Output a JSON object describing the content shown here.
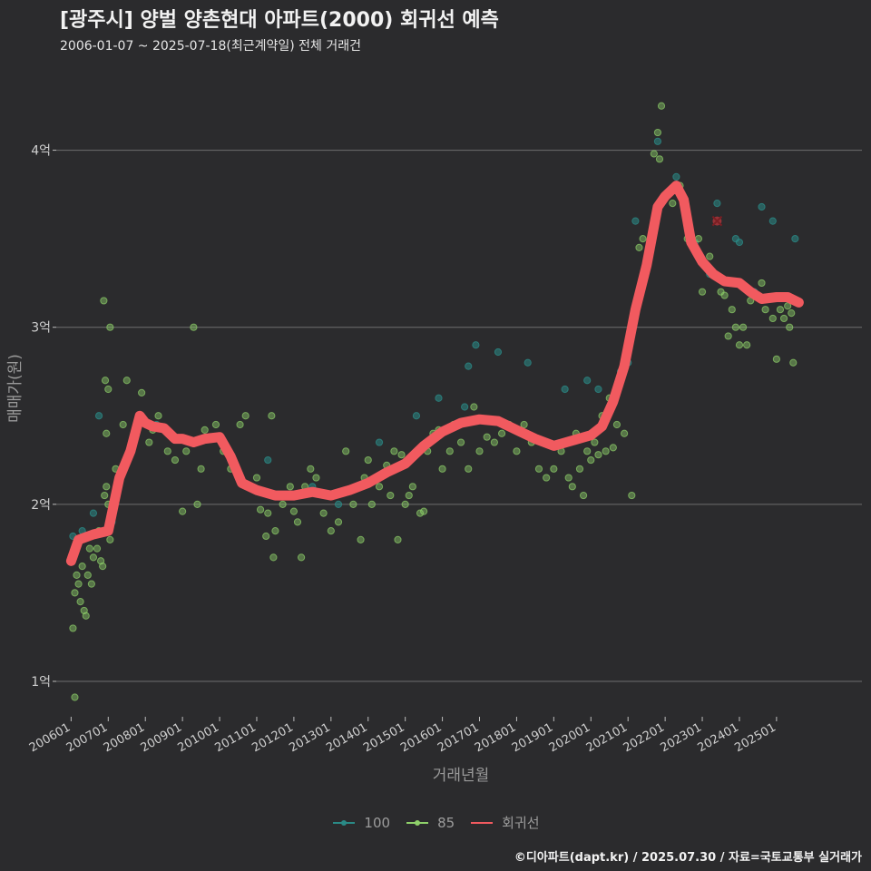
{
  "header": {
    "title": "[광주시] 양벌 양촌현대 아파트(2000) 회귀선 예측",
    "subtitle": "2006-01-07 ~ 2025-07-18(최근계약일) 전체 거래건"
  },
  "caption": "©디아파트(dapt.kr) / 2025.07.30 / 자료=국토교통부 실거래가",
  "colors": {
    "background": "#2b2b2d",
    "grid": "#6e6e6e",
    "series_100": "#2a8a86",
    "series_85": "#8fd16a",
    "regression": "#f15a5f"
  },
  "chart_data": {
    "type": "scatter",
    "xlabel": "거래년월",
    "ylabel": "매매가(원)",
    "x_range": [
      2005.6,
      2027.3
    ],
    "ylim": [
      0.8,
      4.5
    ],
    "y_ticks": [
      {
        "value": 1,
        "label": "1억"
      },
      {
        "value": 2,
        "label": "2억"
      },
      {
        "value": 3,
        "label": "3억"
      },
      {
        "value": 4,
        "label": "4억"
      }
    ],
    "x_ticks": [
      {
        "value": 2006,
        "label": "200601"
      },
      {
        "value": 2007,
        "label": "200701"
      },
      {
        "value": 2008,
        "label": "200801"
      },
      {
        "value": 2009,
        "label": "200901"
      },
      {
        "value": 2010,
        "label": "201001"
      },
      {
        "value": 2011,
        "label": "201101"
      },
      {
        "value": 2012,
        "label": "201201"
      },
      {
        "value": 2013,
        "label": "201301"
      },
      {
        "value": 2014,
        "label": "201401"
      },
      {
        "value": 2015,
        "label": "201501"
      },
      {
        "value": 2016,
        "label": "201601"
      },
      {
        "value": 2017,
        "label": "201701"
      },
      {
        "value": 2018,
        "label": "201801"
      },
      {
        "value": 2019,
        "label": "201901"
      },
      {
        "value": 2020,
        "label": "202001"
      },
      {
        "value": 2021,
        "label": "202101"
      },
      {
        "value": 2022,
        "label": "202201"
      },
      {
        "value": 2023,
        "label": "202301"
      },
      {
        "value": 2024,
        "label": "202401"
      },
      {
        "value": 2025,
        "label": "202501"
      }
    ],
    "grid": "horizontal",
    "legend_position": "bottom",
    "series": [
      {
        "name": "100",
        "points": [
          [
            2006.05,
            1.82
          ],
          [
            2006.3,
            1.85
          ],
          [
            2006.6,
            1.95
          ],
          [
            2006.75,
            2.5
          ],
          [
            2007.1,
            1.9
          ],
          [
            2008.3,
            2.45
          ],
          [
            2010.3,
            2.25
          ],
          [
            2011.3,
            2.25
          ],
          [
            2012.5,
            2.1
          ],
          [
            2013.2,
            2.0
          ],
          [
            2014.3,
            2.35
          ],
          [
            2015.3,
            2.5
          ],
          [
            2015.9,
            2.6
          ],
          [
            2016.6,
            2.55
          ],
          [
            2016.7,
            2.78
          ],
          [
            2016.9,
            2.9
          ],
          [
            2017.5,
            2.86
          ],
          [
            2018.3,
            2.8
          ],
          [
            2019.3,
            2.65
          ],
          [
            2019.9,
            2.7
          ],
          [
            2020.2,
            2.65
          ],
          [
            2020.5,
            2.55
          ],
          [
            2020.8,
            2.75
          ],
          [
            2021.0,
            2.8
          ],
          [
            2021.2,
            3.6
          ],
          [
            2021.8,
            4.05
          ],
          [
            2022.3,
            3.85
          ],
          [
            2022.8,
            3.48
          ],
          [
            2023.2,
            3.3
          ],
          [
            2023.4,
            3.7
          ],
          [
            2023.9,
            3.5
          ],
          [
            2024.0,
            3.48
          ],
          [
            2024.4,
            3.2
          ],
          [
            2024.6,
            3.68
          ],
          [
            2024.9,
            3.6
          ],
          [
            2025.5,
            3.5
          ]
        ]
      },
      {
        "name": "85",
        "points": [
          [
            2006.05,
            1.3
          ],
          [
            2006.1,
            1.5
          ],
          [
            2006.15,
            1.6
          ],
          [
            2006.2,
            1.55
          ],
          [
            2006.25,
            1.45
          ],
          [
            2006.3,
            1.65
          ],
          [
            2006.35,
            1.4
          ],
          [
            2006.4,
            1.37
          ],
          [
            2006.45,
            1.6
          ],
          [
            2006.5,
            1.75
          ],
          [
            2006.55,
            1.55
          ],
          [
            2006.6,
            1.7
          ],
          [
            2006.7,
            1.75
          ],
          [
            2006.75,
            1.85
          ],
          [
            2006.8,
            1.68
          ],
          [
            2006.85,
            1.65
          ],
          [
            2006.9,
            2.05
          ],
          [
            2006.95,
            2.1
          ],
          [
            2007.0,
            2.0
          ],
          [
            2007.05,
            1.8
          ],
          [
            2006.1,
            0.91
          ],
          [
            2006.88,
            3.15
          ],
          [
            2007.05,
            3.0
          ],
          [
            2006.92,
            2.7
          ],
          [
            2007.0,
            2.65
          ],
          [
            2006.95,
            2.4
          ],
          [
            2007.2,
            2.2
          ],
          [
            2007.4,
            2.45
          ],
          [
            2007.5,
            2.7
          ],
          [
            2007.9,
            2.63
          ],
          [
            2008.1,
            2.35
          ],
          [
            2008.2,
            2.42
          ],
          [
            2008.35,
            2.5
          ],
          [
            2008.6,
            2.3
          ],
          [
            2008.8,
            2.25
          ],
          [
            2009.0,
            1.96
          ],
          [
            2009.1,
            2.3
          ],
          [
            2009.3,
            3.0
          ],
          [
            2009.4,
            2.0
          ],
          [
            2009.5,
            2.2
          ],
          [
            2009.6,
            2.42
          ],
          [
            2009.9,
            2.45
          ],
          [
            2010.1,
            2.3
          ],
          [
            2010.3,
            2.2
          ],
          [
            2010.55,
            2.45
          ],
          [
            2010.7,
            2.5
          ],
          [
            2011.0,
            2.15
          ],
          [
            2011.1,
            1.97
          ],
          [
            2011.25,
            1.82
          ],
          [
            2011.3,
            1.95
          ],
          [
            2011.4,
            2.5
          ],
          [
            2011.45,
            1.7
          ],
          [
            2011.5,
            1.85
          ],
          [
            2011.7,
            2.0
          ],
          [
            2011.9,
            2.1
          ],
          [
            2012.0,
            1.96
          ],
          [
            2012.1,
            1.9
          ],
          [
            2012.2,
            1.7
          ],
          [
            2012.3,
            2.1
          ],
          [
            2012.45,
            2.2
          ],
          [
            2012.6,
            2.15
          ],
          [
            2012.8,
            1.95
          ],
          [
            2013.0,
            1.85
          ],
          [
            2013.2,
            1.9
          ],
          [
            2013.4,
            2.3
          ],
          [
            2013.6,
            2.0
          ],
          [
            2013.8,
            1.8
          ],
          [
            2013.9,
            2.15
          ],
          [
            2014.0,
            2.25
          ],
          [
            2014.1,
            2.0
          ],
          [
            2014.3,
            2.1
          ],
          [
            2014.5,
            2.22
          ],
          [
            2014.6,
            2.05
          ],
          [
            2014.7,
            2.3
          ],
          [
            2014.8,
            1.8
          ],
          [
            2014.9,
            2.28
          ],
          [
            2015.0,
            2.0
          ],
          [
            2015.1,
            2.05
          ],
          [
            2015.2,
            2.1
          ],
          [
            2015.4,
            1.95
          ],
          [
            2015.5,
            1.96
          ],
          [
            2015.6,
            2.3
          ],
          [
            2015.75,
            2.4
          ],
          [
            2015.9,
            2.42
          ],
          [
            2016.0,
            2.2
          ],
          [
            2016.2,
            2.3
          ],
          [
            2016.3,
            2.45
          ],
          [
            2016.5,
            2.35
          ],
          [
            2016.7,
            2.2
          ],
          [
            2016.85,
            2.55
          ],
          [
            2017.0,
            2.3
          ],
          [
            2017.2,
            2.38
          ],
          [
            2017.4,
            2.35
          ],
          [
            2017.6,
            2.4
          ],
          [
            2017.8,
            2.45
          ],
          [
            2018.0,
            2.3
          ],
          [
            2018.2,
            2.45
          ],
          [
            2018.4,
            2.35
          ],
          [
            2018.6,
            2.2
          ],
          [
            2018.8,
            2.15
          ],
          [
            2019.0,
            2.2
          ],
          [
            2019.2,
            2.3
          ],
          [
            2019.4,
            2.15
          ],
          [
            2019.5,
            2.1
          ],
          [
            2019.6,
            2.4
          ],
          [
            2019.7,
            2.2
          ],
          [
            2019.8,
            2.05
          ],
          [
            2019.9,
            2.3
          ],
          [
            2020.0,
            2.25
          ],
          [
            2020.1,
            2.35
          ],
          [
            2020.2,
            2.28
          ],
          [
            2020.3,
            2.5
          ],
          [
            2020.4,
            2.3
          ],
          [
            2020.5,
            2.6
          ],
          [
            2020.6,
            2.32
          ],
          [
            2020.7,
            2.45
          ],
          [
            2020.9,
            2.4
          ],
          [
            2021.1,
            2.05
          ],
          [
            2021.3,
            3.45
          ],
          [
            2021.4,
            3.5
          ],
          [
            2021.7,
            3.98
          ],
          [
            2021.8,
            4.1
          ],
          [
            2021.9,
            4.25
          ],
          [
            2021.85,
            3.95
          ],
          [
            2022.2,
            3.7
          ],
          [
            2022.4,
            3.8
          ],
          [
            2022.6,
            3.5
          ],
          [
            2022.9,
            3.5
          ],
          [
            2023.0,
            3.2
          ],
          [
            2023.2,
            3.4
          ],
          [
            2023.5,
            3.2
          ],
          [
            2023.6,
            3.18
          ],
          [
            2023.7,
            2.95
          ],
          [
            2023.8,
            3.1
          ],
          [
            2023.9,
            3.0
          ],
          [
            2024.0,
            2.9
          ],
          [
            2024.1,
            3.0
          ],
          [
            2024.2,
            2.9
          ],
          [
            2024.3,
            3.15
          ],
          [
            2024.6,
            3.25
          ],
          [
            2024.7,
            3.1
          ],
          [
            2024.9,
            3.05
          ],
          [
            2025.0,
            2.82
          ],
          [
            2025.1,
            3.1
          ],
          [
            2025.2,
            3.05
          ],
          [
            2025.3,
            3.12
          ],
          [
            2025.35,
            3.0
          ],
          [
            2025.4,
            3.08
          ],
          [
            2025.45,
            2.8
          ]
        ]
      },
      {
        "name": "회귀선",
        "line": [
          [
            2006.0,
            1.68
          ],
          [
            2006.2,
            1.8
          ],
          [
            2006.6,
            1.83
          ],
          [
            2007.0,
            1.85
          ],
          [
            2007.3,
            2.15
          ],
          [
            2007.6,
            2.3
          ],
          [
            2007.85,
            2.5
          ],
          [
            2008.0,
            2.46
          ],
          [
            2008.2,
            2.44
          ],
          [
            2008.5,
            2.43
          ],
          [
            2008.8,
            2.37
          ],
          [
            2009.0,
            2.37
          ],
          [
            2009.3,
            2.35
          ],
          [
            2009.6,
            2.37
          ],
          [
            2010.0,
            2.38
          ],
          [
            2010.3,
            2.27
          ],
          [
            2010.6,
            2.12
          ],
          [
            2011.0,
            2.08
          ],
          [
            2011.5,
            2.05
          ],
          [
            2012.0,
            2.05
          ],
          [
            2012.5,
            2.07
          ],
          [
            2013.0,
            2.05
          ],
          [
            2013.5,
            2.08
          ],
          [
            2014.0,
            2.12
          ],
          [
            2014.5,
            2.18
          ],
          [
            2015.0,
            2.23
          ],
          [
            2015.5,
            2.33
          ],
          [
            2016.0,
            2.41
          ],
          [
            2016.5,
            2.46
          ],
          [
            2017.0,
            2.48
          ],
          [
            2017.5,
            2.47
          ],
          [
            2018.0,
            2.42
          ],
          [
            2018.5,
            2.37
          ],
          [
            2019.0,
            2.33
          ],
          [
            2019.5,
            2.36
          ],
          [
            2020.0,
            2.39
          ],
          [
            2020.3,
            2.44
          ],
          [
            2020.6,
            2.58
          ],
          [
            2020.9,
            2.78
          ],
          [
            2021.2,
            3.1
          ],
          [
            2021.5,
            3.35
          ],
          [
            2021.8,
            3.68
          ],
          [
            2022.0,
            3.74
          ],
          [
            2022.3,
            3.8
          ],
          [
            2022.5,
            3.72
          ],
          [
            2022.7,
            3.48
          ],
          [
            2023.0,
            3.37
          ],
          [
            2023.3,
            3.3
          ],
          [
            2023.6,
            3.26
          ],
          [
            2024.0,
            3.25
          ],
          [
            2024.3,
            3.2
          ],
          [
            2024.6,
            3.16
          ],
          [
            2025.0,
            3.17
          ],
          [
            2025.3,
            3.17
          ],
          [
            2025.6,
            3.14
          ]
        ],
        "marker": [
          2023.4,
          3.6
        ]
      }
    ]
  }
}
